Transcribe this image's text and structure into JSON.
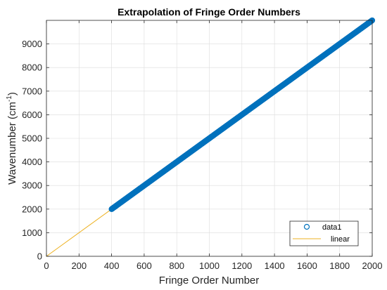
{
  "chart_data": {
    "type": "scatter",
    "title": "Extrapolation of Fringe Order Numbers",
    "xlabel": "Fringe Order Number",
    "ylabel_main": "Wavenumber (cm",
    "ylabel_sup": "-1",
    "ylabel_close": ")",
    "xlim": [
      0,
      2000
    ],
    "ylim": [
      0,
      10000
    ],
    "xticks": [
      0,
      200,
      400,
      600,
      800,
      1000,
      1200,
      1400,
      1600,
      1800,
      2000
    ],
    "yticks": [
      0,
      1000,
      2000,
      3000,
      4000,
      5000,
      6000,
      7000,
      8000,
      9000
    ],
    "grid": true,
    "legend_position": "bottom-right",
    "series": [
      {
        "name": "data1",
        "kind": "markers",
        "marker": "circle",
        "color": "#0072BD",
        "x_start": 400,
        "x_end": 2000,
        "x_step": 1,
        "slope": 5,
        "intercept": 0
      },
      {
        "name": "linear",
        "kind": "line",
        "color": "#EDB120",
        "x": [
          0,
          2000
        ],
        "y": [
          0,
          10000
        ]
      }
    ]
  }
}
